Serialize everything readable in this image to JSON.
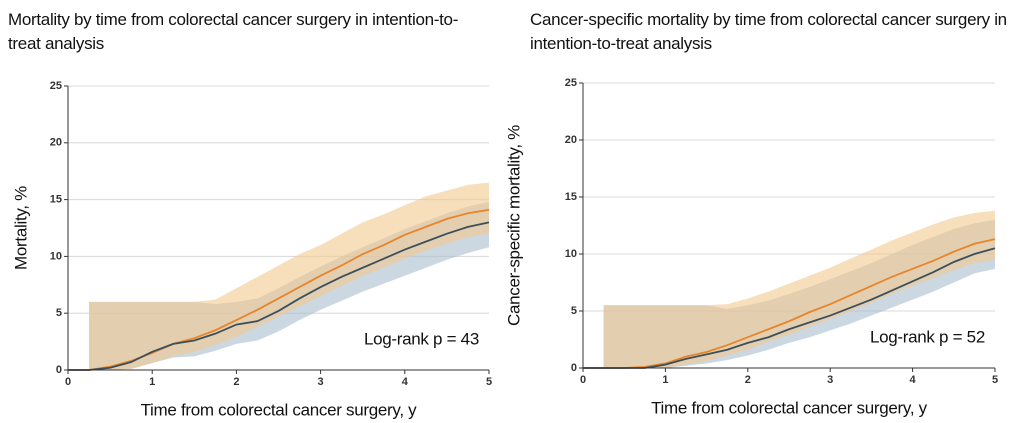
{
  "chart_data": [
    {
      "type": "line",
      "title": "Mortality by time from colorectal cancer surgery in intention-to-treat analysis",
      "xlabel": "Time from colorectal cancer surgery, y",
      "ylabel": "Mortality, %",
      "annotation": "Log-rank p = 43",
      "xlim": [
        0,
        5
      ],
      "xticks": [
        0,
        1,
        2,
        3,
        4,
        5
      ],
      "ylim": [
        0,
        25
      ],
      "yticks": [
        0,
        5,
        10,
        15,
        20,
        25
      ],
      "grid": true,
      "x": [
        0,
        0.25,
        0.5,
        0.75,
        1,
        1.25,
        1.5,
        1.75,
        2,
        2.25,
        2.5,
        2.75,
        3,
        3.25,
        3.5,
        3.75,
        4,
        4.25,
        4.5,
        4.75,
        5
      ],
      "series": [
        {
          "color": "#e8842a",
          "band_color": "#f3c98f",
          "values": [
            0,
            0,
            0.3,
            0.8,
            1.5,
            2.3,
            2.8,
            3.5,
            4.4,
            5.3,
            6.3,
            7.3,
            8.3,
            9.2,
            10.2,
            11.0,
            11.9,
            12.6,
            13.3,
            13.8,
            14.1
          ],
          "upper": [
            null,
            6,
            6,
            6,
            6,
            6,
            6,
            6.2,
            7.2,
            8.2,
            9.2,
            10.2,
            11.0,
            12.0,
            13.0,
            13.7,
            14.5,
            15.3,
            15.8,
            16.3,
            16.5
          ],
          "lower": [
            null,
            0,
            0,
            0.1,
            0.6,
            1.2,
            1.6,
            2.2,
            2.9,
            3.8,
            4.7,
            5.6,
            6.5,
            7.4,
            8.3,
            9.0,
            9.8,
            10.5,
            11.1,
            11.7,
            12.0
          ]
        },
        {
          "color": "#3c4f5c",
          "band_color": "#a9bccd",
          "values": [
            0,
            0,
            0.2,
            0.7,
            1.6,
            2.3,
            2.6,
            3.2,
            4.0,
            4.3,
            5.2,
            6.3,
            7.3,
            8.2,
            9.0,
            9.8,
            10.6,
            11.3,
            12.0,
            12.6,
            13.0
          ],
          "upper": [
            null,
            6,
            6,
            6,
            6,
            6,
            6,
            5.8,
            6.0,
            6.3,
            7.2,
            8.2,
            9.1,
            10.0,
            10.8,
            11.6,
            12.4,
            13.1,
            13.8,
            14.4,
            14.8
          ],
          "lower": [
            null,
            0,
            0,
            0.1,
            0.6,
            1.1,
            1.2,
            1.7,
            2.3,
            2.6,
            3.4,
            4.4,
            5.3,
            6.1,
            6.9,
            7.6,
            8.3,
            9.0,
            9.7,
            10.3,
            10.8
          ]
        }
      ]
    },
    {
      "type": "line",
      "title": "Cancer-specific mortality by time from colorectal cancer surgery in intention-to-treat analysis",
      "xlabel": "Time from colorectal cancer surgery, y",
      "ylabel": "Cancer-specific mortality, %",
      "annotation": "Log-rank p = 52",
      "xlim": [
        0,
        5
      ],
      "xticks": [
        0,
        1,
        2,
        3,
        4,
        5
      ],
      "ylim": [
        0,
        25
      ],
      "yticks": [
        0,
        5,
        10,
        15,
        20,
        25
      ],
      "grid": true,
      "x": [
        0,
        0.25,
        0.5,
        0.75,
        1,
        1.25,
        1.5,
        1.75,
        2,
        2.25,
        2.5,
        2.75,
        3,
        3.25,
        3.5,
        3.75,
        4,
        4.25,
        4.5,
        4.75,
        5
      ],
      "series": [
        {
          "color": "#e8842a",
          "band_color": "#f3c98f",
          "values": [
            0,
            0,
            0,
            0.1,
            0.4,
            1.0,
            1.4,
            2.0,
            2.7,
            3.4,
            4.1,
            4.9,
            5.6,
            6.4,
            7.2,
            8.0,
            8.7,
            9.4,
            10.2,
            10.9,
            11.3
          ],
          "upper": [
            null,
            5.5,
            5.5,
            5.5,
            5.5,
            5.5,
            5.5,
            5.6,
            6.1,
            6.7,
            7.4,
            8.1,
            8.8,
            9.6,
            10.4,
            11.2,
            11.9,
            12.6,
            13.2,
            13.6,
            13.8
          ],
          "lower": [
            null,
            0,
            0,
            0,
            0,
            0.3,
            0.6,
            1.1,
            1.6,
            2.3,
            2.9,
            3.6,
            4.3,
            5.0,
            5.7,
            6.5,
            7.2,
            7.9,
            8.6,
            9.2,
            9.5
          ]
        },
        {
          "color": "#3c4f5c",
          "band_color": "#a9bccd",
          "values": [
            0,
            0,
            0,
            0,
            0.3,
            0.8,
            1.2,
            1.6,
            2.2,
            2.7,
            3.4,
            4.0,
            4.6,
            5.3,
            6.0,
            6.8,
            7.6,
            8.4,
            9.3,
            10.0,
            10.5
          ],
          "upper": [
            null,
            5.5,
            5.5,
            5.5,
            5.5,
            5.5,
            5.5,
            5.2,
            5.5,
            5.9,
            6.5,
            7.1,
            7.8,
            8.5,
            9.2,
            10.0,
            10.8,
            11.5,
            12.2,
            12.7,
            13.0
          ],
          "lower": [
            null,
            0,
            0,
            0,
            0,
            0.2,
            0.4,
            0.7,
            1.1,
            1.6,
            2.2,
            2.7,
            3.3,
            3.9,
            4.6,
            5.3,
            6.0,
            6.7,
            7.5,
            8.3,
            8.7
          ]
        }
      ]
    }
  ]
}
